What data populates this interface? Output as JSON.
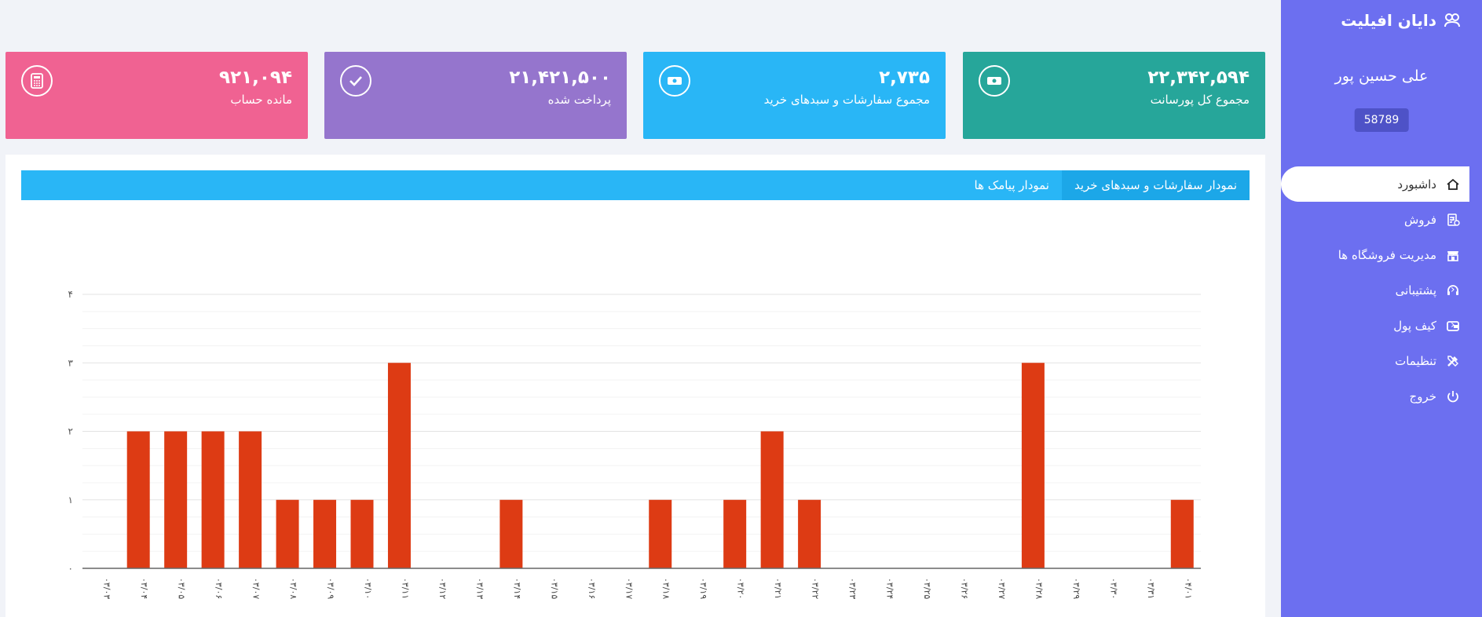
{
  "sidebar": {
    "logo_text": "دایان افیلیت",
    "user_name": "علی حسین پور",
    "user_code": "58789",
    "items": [
      {
        "label": "داشبورد",
        "icon": "home-icon",
        "active": true,
        "has_chevron": false
      },
      {
        "label": "فروش",
        "icon": "receipt-icon",
        "active": false,
        "has_chevron": true
      },
      {
        "label": "مدیریت فروشگاه ها",
        "icon": "store-icon",
        "active": false,
        "has_chevron": true
      },
      {
        "label": "پشتیبانی",
        "icon": "headset-icon",
        "active": false,
        "has_chevron": true
      },
      {
        "label": "کیف پول",
        "icon": "wallet-icon",
        "active": false,
        "has_chevron": true
      },
      {
        "label": "تنظیمات",
        "icon": "tools-icon",
        "active": false,
        "has_chevron": true
      },
      {
        "label": "خروج",
        "icon": "power-icon",
        "active": false,
        "has_chevron": false
      }
    ]
  },
  "cards": [
    {
      "value": "۲۲,۳۴۲,۵۹۴",
      "label": "مجموع کل پورسانت",
      "color": "#26a69a",
      "icon": "money-icon"
    },
    {
      "value": "۲,۷۳۵",
      "label": "مجموع سفارشات و سبدهای خرید",
      "color": "#29b6f6",
      "icon": "money-icon"
    },
    {
      "value": "۲۱,۴۲۱,۵۰۰",
      "label": "پرداخت شده",
      "color": "#9575cd",
      "icon": "check-icon"
    },
    {
      "value": "۹۲۱,۰۹۴",
      "label": "مانده حساب",
      "color": "#f06292",
      "icon": "calculator-icon"
    }
  ],
  "tabs": [
    {
      "label": "نمودار سفارشات و سبدهای خرید",
      "active": true
    },
    {
      "label": "نمودار پیامک ها",
      "active": false
    }
  ],
  "chart_data": {
    "type": "bar",
    "color": "#dd3b14",
    "y_ticks": [
      "۰",
      "۱",
      "۲",
      "۳",
      "۴"
    ],
    "ylim": [
      0,
      4
    ],
    "categories": [
      "۰۳/۰۳",
      "۰۳/۰۴",
      "۰۳/۰۵",
      "۰۳/۰۶",
      "۰۳/۰۷",
      "۰۳/۰۸",
      "۰۳/۰۹",
      "۰۳/۱۰",
      "۰۳/۱۱",
      "۰۳/۱۲",
      "۰۳/۱۳",
      "۰۳/۱۴",
      "۰۳/۱۵",
      "۰۳/۱۶",
      "۰۳/۱۷",
      "۰۳/۱۸",
      "۰۳/۱۹",
      "۰۳/۲۰",
      "۰۳/۲۱",
      "۰۳/۲۲",
      "۰۳/۲۳",
      "۰۳/۲۴",
      "۰۳/۲۵",
      "۰۳/۲۶",
      "۰۳/۲۷",
      "۰۳/۲۸",
      "۰۳/۲۹",
      "۰۳/۳۰",
      "۰۳/۳۱",
      "۰۴/۰۱"
    ],
    "values": [
      0,
      2,
      2,
      2,
      2,
      1,
      1,
      1,
      3,
      0,
      0,
      1,
      0,
      0,
      0,
      1,
      0,
      1,
      2,
      1,
      0,
      0,
      0,
      0,
      0,
      3,
      0,
      0,
      0,
      1
    ]
  }
}
